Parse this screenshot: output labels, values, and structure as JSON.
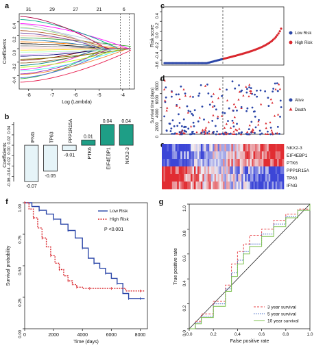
{
  "panels": {
    "a": {
      "letter": "a",
      "xlabel": "Log (Lambda)",
      "ylabel": "Coefficients",
      "top_ticks": [
        "31",
        "29",
        "27",
        "21",
        "6"
      ],
      "x_ticks": [
        "-8",
        "-7",
        "-6",
        "-5",
        "-4"
      ],
      "y_ticks": [
        "-0.4",
        "-0.2",
        "0.0",
        "0.2",
        "0.4"
      ]
    },
    "b": {
      "letter": "b",
      "ylabel": "Coefficients",
      "y_ticks": [
        "-0.06",
        "-0.04",
        "-0.02",
        "0.00",
        "0.02",
        "0.04"
      ]
    },
    "c": {
      "letter": "c",
      "ylabel": "Risk score",
      "y_ticks": [
        "-0.6",
        "-0.4",
        "-0.2",
        "0.0",
        "0.2",
        "0.4"
      ],
      "legend": [
        "Low Risk",
        "High Risk"
      ]
    },
    "d": {
      "letter": "d",
      "ylabel": "Survival time (days)",
      "y_ticks": [
        "0",
        "2000",
        "4000",
        "6000",
        "8000"
      ],
      "legend": [
        "Alive",
        "Death"
      ]
    },
    "e": {
      "letter": "e",
      "genes": [
        "NKX2-3",
        "EIF4EBP1",
        "PTK6",
        "PPP1R15A",
        "TP63",
        "IFNG"
      ]
    },
    "f": {
      "letter": "f",
      "xlabel": "Time (days)",
      "ylabel": "Survival probability",
      "x_ticks": [
        "0",
        "2000",
        "4000",
        "6000",
        "8000"
      ],
      "y_ticks": [
        "0.00",
        "0.25",
        "0.50",
        "0.75",
        "1.00"
      ],
      "legend": [
        "Low Risk",
        "High Risk"
      ],
      "pvalue": "P <0.001"
    },
    "g": {
      "letter": "g",
      "xlabel": "False positive rate",
      "ylabel": "True positive rate",
      "ticks": [
        "0.0",
        "0.2",
        "0.4",
        "0.6",
        "0.8",
        "1.0"
      ],
      "legend": [
        "3 year survival",
        "5 year survival",
        "10 year survival"
      ]
    }
  },
  "colors": {
    "low": "#2b46a8",
    "high": "#d9282f",
    "teal": "#1e9e86",
    "light": "#e6f4f8",
    "roc3": "#e8454a",
    "roc5": "#3a62c4",
    "roc10": "#7cc04e"
  },
  "chart_data": [
    {
      "type": "line",
      "panel": "a",
      "xlim": [
        -8.4,
        -3.5
      ],
      "ylim": [
        -0.6,
        0.52
      ],
      "reference_lines_x": [
        -4.1,
        -3.72
      ]
    },
    {
      "type": "bar",
      "panel": "b",
      "categories": [
        "IFNG",
        "TP63",
        "PPP1R15A",
        "PTK6",
        "EIF4EBP1",
        "NKX2-3"
      ],
      "values": [
        -0.07,
        -0.05,
        -0.01,
        0.01,
        0.04,
        0.04
      ],
      "value_labels": [
        "-0.07",
        "-0.05",
        "-0.01",
        "0.01",
        "0.04",
        "0.04"
      ],
      "ylim": [
        -0.07,
        0.045
      ]
    },
    {
      "type": "scatter",
      "panel": "c",
      "ylim": [
        -0.7,
        0.5
      ],
      "cutoff_fraction": 0.5
    },
    {
      "type": "scatter",
      "panel": "d",
      "ylim": [
        0,
        8500
      ]
    },
    {
      "type": "heatmap",
      "panel": "e",
      "rows": [
        "NKX2-3",
        "EIF4EBP1",
        "PTK6",
        "PPP1R15A",
        "TP63",
        "IFNG"
      ]
    },
    {
      "type": "line",
      "panel": "f",
      "xlim": [
        0,
        8500
      ],
      "ylim": [
        0,
        1
      ],
      "series": [
        {
          "name": "Low Risk",
          "x": [
            0,
            500,
            1000,
            1500,
            2000,
            2500,
            3000,
            3500,
            4000,
            4400,
            4800,
            5200,
            5600,
            6000,
            6400,
            6800,
            7200,
            7600,
            8000,
            8300
          ],
          "y": [
            1.0,
            0.97,
            0.94,
            0.91,
            0.87,
            0.83,
            0.78,
            0.72,
            0.64,
            0.56,
            0.52,
            0.48,
            0.44,
            0.4,
            0.36,
            0.28,
            0.24,
            0.24,
            0.24,
            0.24
          ]
        },
        {
          "name": "High Risk",
          "x": [
            0,
            300,
            600,
            900,
            1200,
            1500,
            1800,
            2100,
            2400,
            2700,
            3000,
            3300,
            3600,
            4000,
            4500,
            5000,
            6000,
            7000,
            8000,
            8300
          ],
          "y": [
            1.0,
            0.95,
            0.88,
            0.8,
            0.72,
            0.65,
            0.58,
            0.52,
            0.47,
            0.42,
            0.38,
            0.35,
            0.33,
            0.32,
            0.32,
            0.32,
            0.32,
            0.3,
            0.3,
            0.3
          ]
        }
      ]
    },
    {
      "type": "line",
      "panel": "g",
      "xlim": [
        0,
        1
      ],
      "ylim": [
        0,
        1
      ],
      "series": [
        {
          "name": "3 year survival",
          "x": [
            0,
            0.05,
            0.1,
            0.2,
            0.3,
            0.35,
            0.4,
            0.45,
            0.5,
            0.6,
            0.7,
            0.8,
            0.9,
            1.0
          ],
          "y": [
            0,
            0.06,
            0.12,
            0.22,
            0.35,
            0.52,
            0.62,
            0.68,
            0.75,
            0.8,
            0.87,
            0.92,
            0.96,
            1.0
          ]
        },
        {
          "name": "5 year survival",
          "x": [
            0,
            0.05,
            0.1,
            0.2,
            0.3,
            0.35,
            0.4,
            0.45,
            0.5,
            0.6,
            0.7,
            0.8,
            0.9,
            1.0
          ],
          "y": [
            0,
            0.05,
            0.1,
            0.2,
            0.32,
            0.45,
            0.55,
            0.62,
            0.68,
            0.76,
            0.84,
            0.9,
            0.95,
            1.0
          ]
        },
        {
          "name": "10 year survival",
          "x": [
            0,
            0.05,
            0.1,
            0.2,
            0.3,
            0.35,
            0.4,
            0.45,
            0.5,
            0.6,
            0.7,
            0.8,
            0.9,
            1.0
          ],
          "y": [
            0,
            0.04,
            0.09,
            0.18,
            0.3,
            0.42,
            0.52,
            0.6,
            0.66,
            0.74,
            0.82,
            0.89,
            0.95,
            1.0
          ]
        }
      ]
    }
  ]
}
